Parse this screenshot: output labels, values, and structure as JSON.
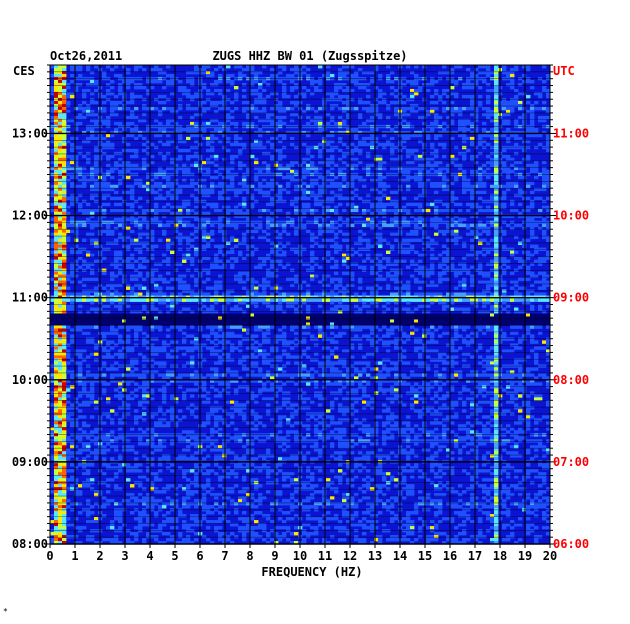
{
  "chart_data": {
    "type": "heatmap",
    "title": "ZUGS HHZ BW 01 (Zugsspitze)",
    "date": "Oct26,2011",
    "xlabel": "FREQUENCY (HZ)",
    "left_axis_label": "CES",
    "right_axis_label": "UTC",
    "xlim": [
      0,
      20
    ],
    "x_ticks": [
      0,
      1,
      2,
      3,
      4,
      5,
      6,
      7,
      8,
      9,
      10,
      11,
      12,
      13,
      14,
      15,
      16,
      17,
      18,
      19,
      20
    ],
    "left_ticks": [
      "08:00",
      "09:00",
      "10:00",
      "11:00",
      "12:00",
      "13:00"
    ],
    "right_ticks": [
      "06:00",
      "07:00",
      "08:00",
      "09:00",
      "10:00",
      "11:00"
    ],
    "time_range_ces": [
      "08:00",
      "13:50"
    ],
    "grid": true,
    "colormap": [
      "#00006e",
      "#0a14d2",
      "#1e50ff",
      "#46a0ff",
      "#5ae6ff",
      "#c8ff3c",
      "#ffe600",
      "#ff6400",
      "#c80000"
    ],
    "features": [
      {
        "description": "persistent low-frequency energy",
        "x_range_hz": [
          0.2,
          0.7
        ],
        "time_range_ces": [
          "08:00",
          "13:50"
        ],
        "level": "high"
      },
      {
        "description": "continuous spectral line",
        "x_hz": 17.8,
        "time_range_ces": [
          "08:00",
          "13:50"
        ],
        "level": "medium"
      },
      {
        "description": "broadband event",
        "x_range_hz": [
          0,
          20
        ],
        "time_ces": "11:00",
        "level": "medium"
      },
      {
        "description": "quiet interval",
        "x_range_hz": [
          0,
          20
        ],
        "time_range_ces": [
          "10:40",
          "10:48"
        ],
        "level": "low"
      }
    ]
  },
  "colors": {
    "left_labels": "#000000",
    "right_labels": "#ff0000",
    "grid": "#000000"
  },
  "footnote": "*"
}
